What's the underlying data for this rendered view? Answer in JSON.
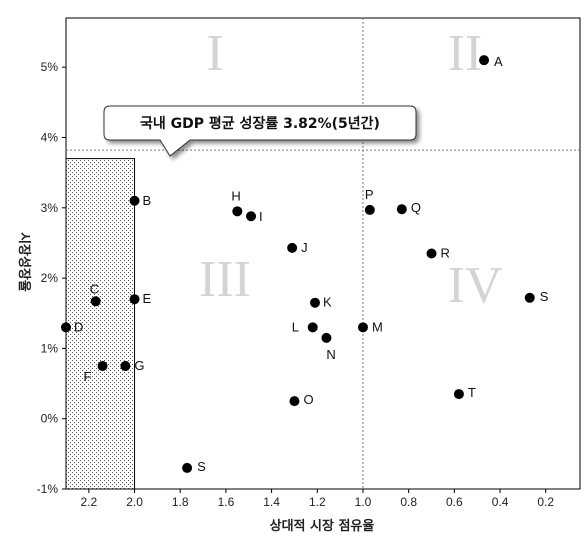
{
  "chart_data": {
    "type": "scatter",
    "title": "",
    "xlabel": "상대적 시장 점유율",
    "ylabel": "시장성장율",
    "x_reversed": true,
    "xlim": [
      2.3,
      0.05
    ],
    "ylim": [
      -1,
      5.7
    ],
    "x_ticks": [
      "2.2",
      "2.0",
      "1.8",
      "1.6",
      "1.4",
      "1.2",
      "1.0",
      "0.8",
      "0.6",
      "0.4",
      "0.2"
    ],
    "y_ticks": [
      "-1%",
      "0%",
      "1%",
      "2%",
      "3%",
      "4%",
      "5%"
    ],
    "grid": false,
    "quadrant_lines": {
      "x": 1.0,
      "y": 3.82
    },
    "quadrant_labels": [
      "I",
      "II",
      "III",
      "IV"
    ],
    "callout": "국내 GDP 평균 성장률 3.82%(5년간)",
    "highlight_region": {
      "x": [
        2.3,
        2.0
      ],
      "y": [
        -1,
        3.7
      ]
    },
    "points": [
      {
        "label": "A",
        "x": 0.47,
        "y": 5.1
      },
      {
        "label": "B",
        "x": 2.0,
        "y": 3.1
      },
      {
        "label": "C",
        "x": 2.17,
        "y": 1.67
      },
      {
        "label": "D",
        "x": 2.3,
        "y": 1.3
      },
      {
        "label": "E",
        "x": 2.0,
        "y": 1.7
      },
      {
        "label": "F",
        "x": 2.14,
        "y": 0.75
      },
      {
        "label": "G",
        "x": 2.04,
        "y": 0.75
      },
      {
        "label": "H",
        "x": 1.55,
        "y": 2.95
      },
      {
        "label": "I",
        "x": 1.49,
        "y": 2.88
      },
      {
        "label": "J",
        "x": 1.31,
        "y": 2.43
      },
      {
        "label": "K",
        "x": 1.21,
        "y": 1.65
      },
      {
        "label": "L",
        "x": 1.22,
        "y": 1.3
      },
      {
        "label": "M",
        "x": 1.0,
        "y": 1.3
      },
      {
        "label": "N",
        "x": 1.16,
        "y": 1.15
      },
      {
        "label": "O",
        "x": 1.3,
        "y": 0.25
      },
      {
        "label": "P",
        "x": 0.97,
        "y": 2.97
      },
      {
        "label": "Q",
        "x": 0.83,
        "y": 2.98
      },
      {
        "label": "R",
        "x": 0.7,
        "y": 2.35
      },
      {
        "label": "S",
        "x": 0.27,
        "y": 1.72
      },
      {
        "label": "T",
        "x": 0.58,
        "y": 0.35
      },
      {
        "label": "S",
        "x": 1.77,
        "y": -0.7
      }
    ]
  }
}
